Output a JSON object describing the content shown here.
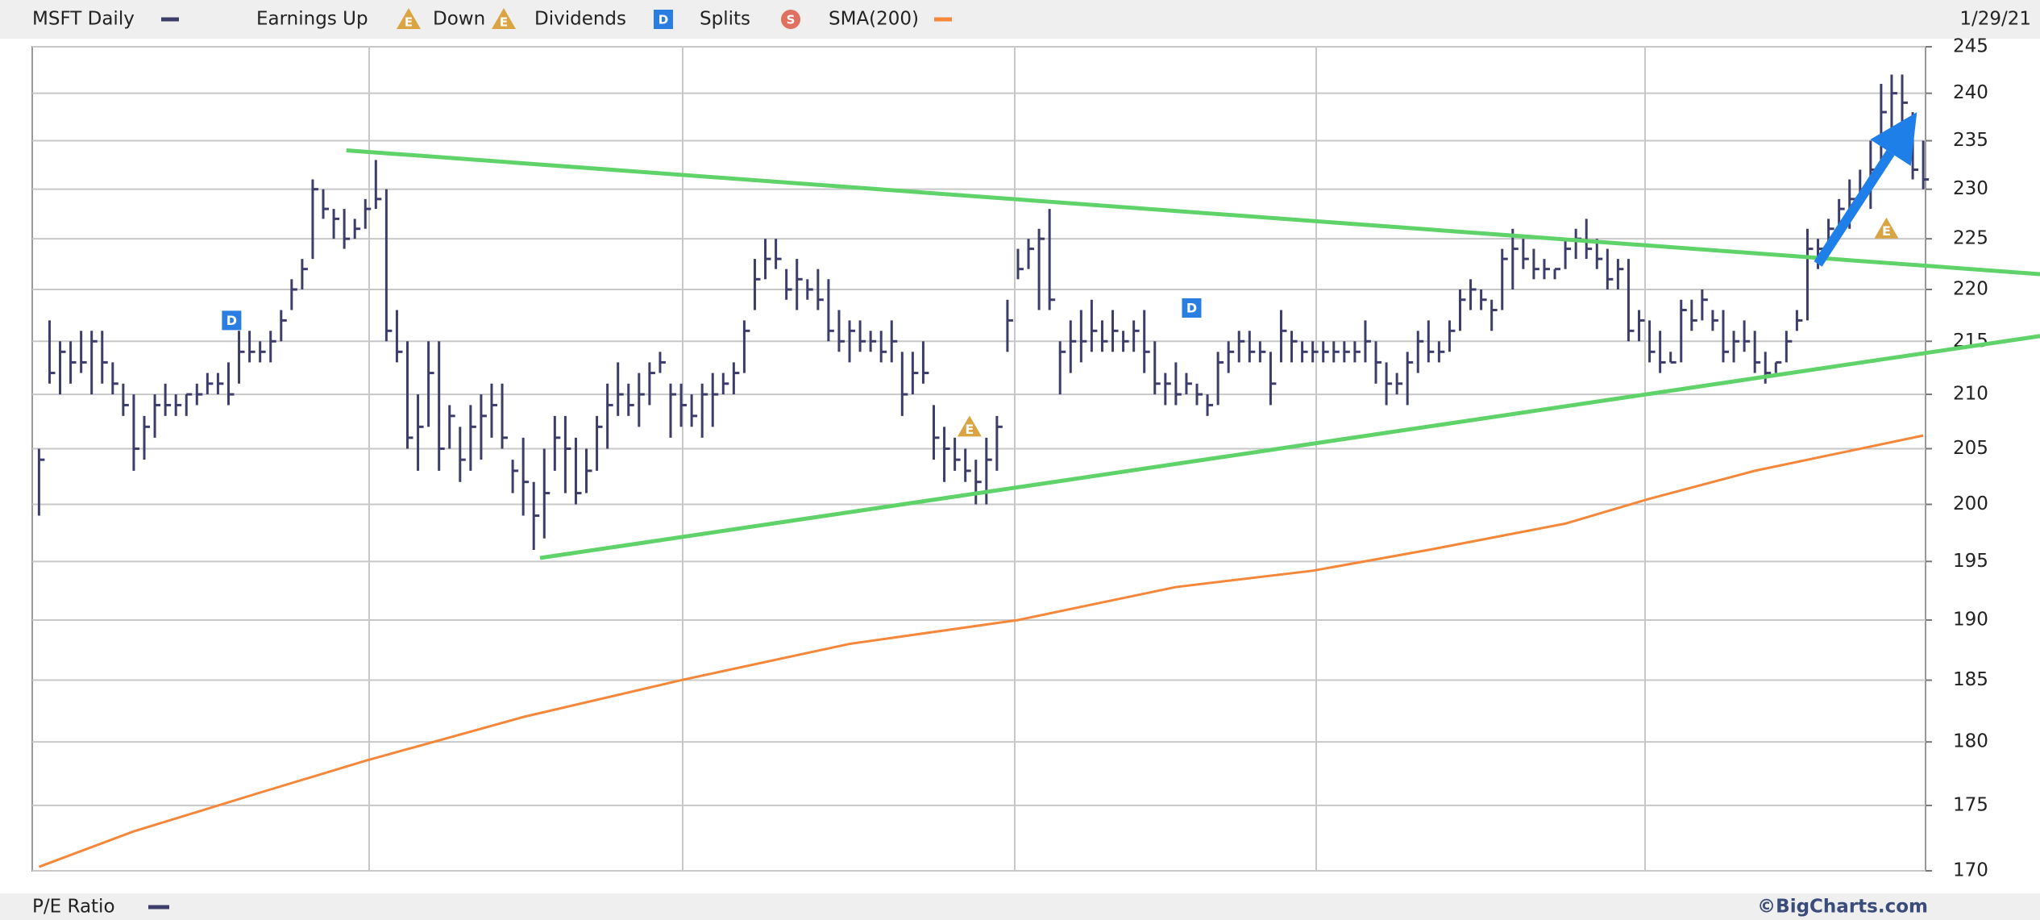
{
  "chart_data": {
    "type": "ohlc",
    "date_label": "1/29/21",
    "log_scale": true,
    "grid": true,
    "ylim": [
      170,
      245
    ],
    "yticks": [
      170,
      175,
      180,
      185,
      190,
      195,
      200,
      205,
      210,
      215,
      220,
      225,
      230,
      235,
      240,
      245
    ],
    "series": [
      {
        "name": "MSFT Daily",
        "color": "#3d3d6b",
        "high": [
          205,
          217,
          215,
          215,
          216,
          216,
          216,
          213,
          211,
          210,
          208,
          210,
          211,
          210,
          210,
          211,
          212,
          212,
          213,
          216,
          216,
          215,
          216,
          218,
          221,
          223,
          231,
          230,
          228,
          228,
          227,
          229,
          233,
          230,
          218,
          215,
          210,
          215,
          215,
          209,
          207,
          209,
          210,
          211,
          211,
          204,
          206,
          202,
          205,
          208,
          208,
          206,
          205,
          208,
          211,
          213,
          211,
          212,
          213,
          214,
          211,
          211,
          210,
          211,
          212,
          212,
          213,
          217,
          223,
          225,
          225,
          222,
          223,
          221,
          222,
          221,
          218,
          217,
          217,
          216,
          216,
          217,
          214,
          214,
          215,
          209,
          207,
          206,
          205,
          204,
          206,
          208,
          219,
          224,
          225,
          226,
          228,
          215,
          217,
          218,
          219,
          217,
          218,
          216,
          217,
          218,
          215,
          212,
          213,
          212,
          211,
          210,
          214,
          215,
          216,
          216,
          215,
          214,
          218,
          216,
          215,
          215,
          215,
          215,
          215,
          215,
          217,
          215,
          213,
          212,
          214,
          216,
          217,
          215,
          217,
          220,
          221,
          220,
          219,
          224,
          226,
          225,
          224,
          223,
          222,
          225,
          226,
          227,
          225,
          224,
          223,
          223,
          218,
          217,
          216,
          214,
          219,
          219,
          220,
          218,
          218,
          216,
          217,
          216,
          214,
          213,
          216,
          218,
          226,
          225,
          227,
          229,
          231,
          232,
          235,
          241,
          242,
          242,
          238,
          235
        ],
        "low": [
          199,
          211,
          210,
          211,
          212,
          210,
          211,
          210,
          208,
          203,
          204,
          206,
          208,
          208,
          208,
          209,
          210,
          210,
          209,
          211,
          213,
          213,
          213,
          215,
          218,
          220,
          223,
          227,
          225,
          224,
          225,
          226,
          228,
          215,
          213,
          205,
          203,
          207,
          203,
          205,
          202,
          203,
          204,
          206,
          205,
          201,
          199,
          196,
          197,
          203,
          201,
          200,
          201,
          203,
          205,
          208,
          208,
          207,
          209,
          212,
          206,
          207,
          207,
          206,
          207,
          210,
          210,
          212,
          218,
          221,
          222,
          219,
          218,
          219,
          218,
          215,
          214,
          213,
          214,
          214,
          213,
          213,
          208,
          210,
          211,
          204,
          202,
          203,
          202,
          200,
          200,
          203,
          214,
          221,
          222,
          218,
          218,
          210,
          212,
          213,
          214,
          214,
          214,
          214,
          214,
          212,
          210,
          209,
          209,
          210,
          209,
          208,
          209,
          212,
          213,
          213,
          213,
          209,
          213,
          213,
          213,
          213,
          213,
          213,
          213,
          213,
          213,
          211,
          209,
          210,
          209,
          212,
          213,
          213,
          214,
          216,
          218,
          218,
          216,
          218,
          220,
          222,
          221,
          221,
          221,
          222,
          223,
          223,
          222,
          220,
          220,
          215,
          215,
          213,
          212,
          213,
          213,
          216,
          217,
          216,
          213,
          213,
          214,
          212,
          211,
          212,
          213,
          216,
          217,
          222,
          224,
          225,
          226,
          229,
          228,
          233,
          236,
          237,
          231,
          230
        ],
        "close": [
          204,
          212,
          214,
          213,
          213,
          215,
          213,
          211,
          209,
          205,
          207,
          209,
          209,
          209,
          210,
          210,
          211,
          211,
          210,
          214,
          214,
          214,
          215,
          217,
          220,
          222,
          230,
          228,
          227,
          225,
          226,
          228,
          229,
          216,
          214,
          206,
          207,
          212,
          205,
          208,
          204,
          207,
          208,
          209,
          206,
          203,
          202,
          199,
          201,
          206,
          205,
          201,
          203,
          207,
          209,
          210,
          209,
          210,
          212,
          213,
          210,
          209,
          208,
          210,
          210,
          211,
          212,
          216,
          221,
          223,
          223,
          220,
          221,
          220,
          219,
          216,
          215,
          216,
          215,
          215,
          214,
          215,
          210,
          212,
          212,
          206,
          205,
          204,
          203,
          202,
          204,
          207,
          217,
          222,
          224,
          225,
          219,
          214,
          215,
          215,
          216,
          215,
          216,
          215,
          216,
          214,
          211,
          211,
          210,
          211,
          210,
          209,
          213,
          214,
          215,
          214,
          214,
          211,
          216,
          215,
          214,
          214,
          214,
          214,
          214,
          214,
          215,
          213,
          211,
          211,
          213,
          215,
          214,
          214,
          216,
          219,
          220,
          219,
          218,
          223,
          224,
          223,
          222,
          222,
          222,
          224,
          225,
          224,
          223,
          221,
          222,
          216,
          217,
          214,
          213,
          213,
          218,
          217,
          219,
          217,
          214,
          215,
          215,
          213,
          212,
          213,
          215,
          217,
          224,
          224,
          226,
          228,
          229,
          230,
          232,
          238,
          240,
          239,
          232,
          231
        ]
      },
      {
        "name": "SMA(200)",
        "color": "#f5873a",
        "x": [
          0,
          9,
          21,
          31,
          46,
          61,
          77,
          93,
          108,
          121,
          132,
          145,
          153,
          163,
          179
        ],
        "values": [
          170.3,
          173,
          176,
          178.5,
          182,
          185,
          188,
          190,
          192.8,
          194.2,
          196,
          198.3,
          200.5,
          203,
          206.2
        ]
      }
    ],
    "legend_items": [
      {
        "label": "Earnings Up",
        "icon": "E"
      },
      {
        "label": "Down",
        "icon": "E"
      },
      {
        "label": "Dividends",
        "icon": "D"
      },
      {
        "label": "Splits",
        "icon": "S"
      }
    ],
    "events": [
      {
        "icon": "D",
        "x": 18.3,
        "y": 217
      },
      {
        "icon": "D",
        "x": 109.5,
        "y": 218.2
      },
      {
        "icon": "E",
        "x": 88.4,
        "y": 207
      },
      {
        "icon": "E",
        "x": 175.5,
        "y": 226
      }
    ],
    "trendlines": [
      {
        "color": "#5fd36a",
        "x": [
          29.2,
          190.1
        ],
        "y": [
          234,
          221.5
        ]
      },
      {
        "color": "#5fd36a",
        "x": [
          47.6,
          190.1
        ],
        "y": [
          195.3,
          215.5
        ]
      }
    ],
    "arrow": {
      "color": "#1f7fe8",
      "x": [
        169,
        178.4
      ],
      "y": [
        222.5,
        238
      ]
    },
    "footer": {
      "label": "P/E Ratio",
      "credit": "©BigCharts.com"
    }
  }
}
